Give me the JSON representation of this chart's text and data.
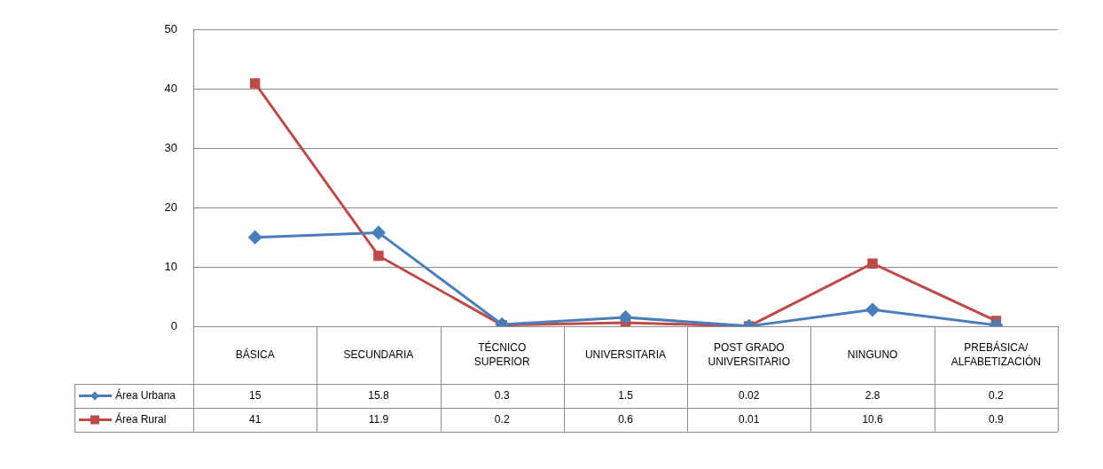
{
  "chart_data": {
    "type": "line",
    "categories": [
      "BÁSICA",
      "SECUNDARIA",
      "TÉCNICO SUPERIOR",
      "UNIVERSITARIA",
      "POST GRADO UNIVERSITARIO",
      "NINGUNO",
      "PREBÁSICA/ ALFABETIZACIÓN"
    ],
    "series": [
      {
        "name": "Área Urbana",
        "color": "#4a7ebb",
        "marker": "diamond",
        "values": [
          15,
          15.8,
          0.3,
          1.5,
          0.02,
          2.8,
          0.2
        ]
      },
      {
        "name": "Área Rural",
        "color": "#be4b48",
        "marker": "square",
        "values": [
          41,
          11.9,
          0.2,
          0.6,
          0.01,
          10.6,
          0.9
        ]
      }
    ],
    "ylim": [
      0,
      50
    ],
    "yticks": [
      0,
      10,
      20,
      30,
      40,
      50
    ],
    "grid": "y",
    "legend": "bottom",
    "data_labels": true
  }
}
